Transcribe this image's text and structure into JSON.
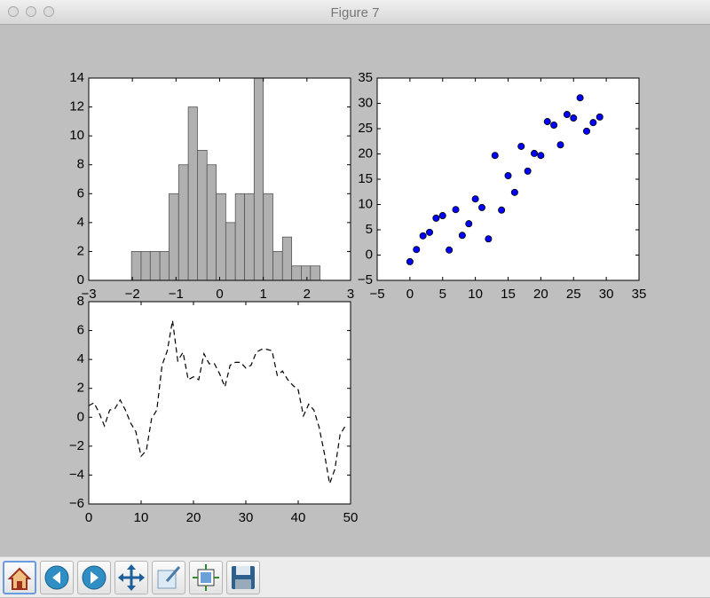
{
  "window": {
    "title": "Figure 7"
  },
  "chart_data": [
    {
      "type": "histogram",
      "bins": [
        -2.02,
        -1.8,
        -1.59,
        -1.37,
        -1.16,
        -0.94,
        -0.72,
        -0.51,
        -0.29,
        -0.08,
        0.14,
        0.36,
        0.57,
        0.79,
        1.0,
        1.22,
        1.44,
        1.65,
        1.87,
        2.08,
        2.3
      ],
      "values": [
        2,
        2,
        2,
        2,
        6,
        8,
        12,
        9,
        8,
        6,
        4,
        6,
        6,
        14,
        6,
        2,
        3,
        1,
        1,
        1
      ],
      "color": "#b0b0b0",
      "xlim": [
        -3,
        3
      ],
      "xticks": [
        {
          "value": -3,
          "label": "−3"
        },
        {
          "value": -2,
          "label": "−2"
        },
        {
          "value": -1,
          "label": "−1"
        },
        0,
        1,
        2,
        3
      ],
      "ylim": [
        0,
        14
      ],
      "yticks": [
        0,
        2,
        4,
        6,
        8,
        10,
        12,
        14
      ]
    },
    {
      "type": "scatter",
      "x": [
        0,
        1,
        2,
        3,
        4,
        5,
        6,
        7,
        8,
        9,
        10,
        11,
        12,
        13,
        14,
        15,
        16,
        17,
        18,
        19,
        20,
        21,
        22,
        23,
        24,
        25,
        26,
        27,
        28,
        29
      ],
      "values": [
        -1.3,
        1.1,
        3.8,
        4.5,
        7.3,
        7.8,
        1.0,
        9.0,
        3.9,
        6.2,
        11.1,
        9.4,
        3.2,
        19.7,
        8.9,
        15.7,
        12.4,
        21.5,
        16.6,
        20.1,
        19.7,
        26.4,
        25.7,
        21.8,
        27.8,
        27.1,
        31.1,
        24.5,
        26.2,
        27.3
      ],
      "color": "#0000ff",
      "xlim": [
        -5,
        35
      ],
      "xticks": [
        {
          "value": -5,
          "label": "−5"
        },
        0,
        5,
        10,
        15,
        20,
        25,
        30,
        35
      ],
      "ylim": [
        -5,
        35
      ],
      "yticks": [
        {
          "value": -5,
          "label": "−5"
        },
        0,
        5,
        10,
        15,
        20,
        25,
        30,
        35
      ]
    },
    {
      "type": "line",
      "x": [
        0,
        1,
        2,
        3,
        4,
        5,
        6,
        7,
        8,
        9,
        10,
        11,
        12,
        13,
        14,
        15,
        16,
        17,
        18,
        19,
        20,
        21,
        22,
        23,
        24,
        25,
        26,
        27,
        28,
        29,
        30,
        31,
        32,
        33,
        34,
        35,
        36,
        37,
        38,
        39,
        40,
        41,
        42,
        43,
        44,
        45,
        46,
        47,
        48,
        49
      ],
      "values": [
        0.8,
        1.0,
        0.3,
        -0.6,
        0.5,
        0.6,
        1.2,
        0.5,
        -0.4,
        -1.0,
        -2.7,
        -2.3,
        -0.1,
        0.5,
        3.6,
        4.6,
        6.7,
        3.9,
        4.5,
        2.6,
        2.8,
        2.6,
        4.4,
        3.7,
        3.7,
        3.0,
        2.1,
        3.6,
        3.8,
        3.8,
        3.4,
        3.6,
        4.5,
        4.7,
        4.7,
        4.6,
        2.9,
        3.2,
        2.6,
        2.2,
        1.9,
        0.1,
        0.9,
        0.5,
        -0.7,
        -2.5,
        -4.6,
        -3.6,
        -1.2,
        -0.6
      ],
      "color": "#000000",
      "linestyle": "dashed",
      "xlim": [
        0,
        50
      ],
      "xticks": [
        0,
        10,
        20,
        30,
        40,
        50
      ],
      "ylim": [
        -6,
        8
      ],
      "yticks": [
        {
          "value": -6,
          "label": "−6"
        },
        {
          "value": -4,
          "label": "−4"
        },
        {
          "value": -2,
          "label": "−2"
        },
        0,
        2,
        4,
        6,
        8
      ]
    }
  ]
}
